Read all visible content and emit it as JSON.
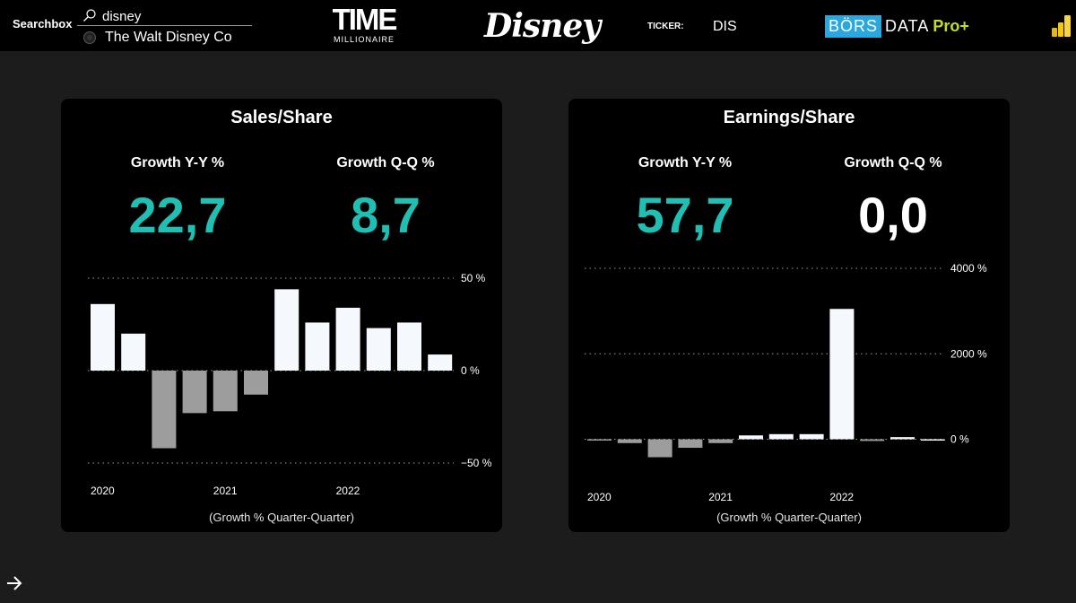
{
  "header": {
    "search_label": "Searchbox",
    "search_value": "disney",
    "result": "The Walt Disney Co",
    "timemillionaire": {
      "title": "TIME",
      "sub": "MILLIONAIRE"
    },
    "disney_logo": "Disney",
    "ticker_label": "TICKER:",
    "ticker_value": "DIS",
    "borsdata": {
      "bors": "BÖRS",
      "data": "DATA",
      "pro": "Pro+"
    }
  },
  "colors": {
    "accent": "#1fbfb3",
    "bar_pos": "#f5f8fc",
    "bar_neg": "#9d9d9d",
    "card": "#000000",
    "bg": "#1c1c1c"
  },
  "sales_card": {
    "title": "Sales/Share",
    "yoy_label": "Growth Y-Y %",
    "yoy_value": "22,7",
    "qoq_label": "Growth Q-Q %",
    "qoq_value": "8,7",
    "caption": "(Growth % Quarter-Quarter)"
  },
  "earnings_card": {
    "title": "Earnings/Share",
    "yoy_label": "Growth Y-Y %",
    "yoy_value": "57,7",
    "qoq_label": "Growth Q-Q %",
    "qoq_value": "0,0",
    "caption": "(Growth % Quarter-Quarter)"
  },
  "chart_data": [
    {
      "type": "bar",
      "title": "Sales/Share",
      "xlabel": "(Growth % Quarter-Quarter)",
      "x_tick_labels": [
        "2020",
        "2021",
        "2022"
      ],
      "x_tick_at_index": [
        0,
        4,
        8
      ],
      "y_ticks": [
        {
          "value": 50,
          "label": "50 %"
        },
        {
          "value": 0,
          "label": "0 %"
        },
        {
          "value": -50,
          "label": "−50 %"
        }
      ],
      "ylim": [
        -50,
        50
      ],
      "values": [
        36,
        20,
        -42,
        -23,
        -22,
        -13,
        44,
        26,
        34,
        23,
        26,
        8.7
      ]
    },
    {
      "type": "bar",
      "title": "Earnings/Share",
      "xlabel": "(Growth % Quarter-Quarter)",
      "x_tick_labels": [
        "2020",
        "2021",
        "2022"
      ],
      "x_tick_at_index": [
        0,
        4,
        8
      ],
      "y_ticks": [
        {
          "value": 4000,
          "label": "4000 %"
        },
        {
          "value": 2000,
          "label": "2000 %"
        },
        {
          "value": 0,
          "label": "0 %"
        }
      ],
      "ylim": [
        -430,
        4000
      ],
      "values": [
        -30,
        -90,
        -420,
        -200,
        -90,
        90,
        120,
        120,
        3050,
        -40,
        50,
        0
      ]
    }
  ]
}
